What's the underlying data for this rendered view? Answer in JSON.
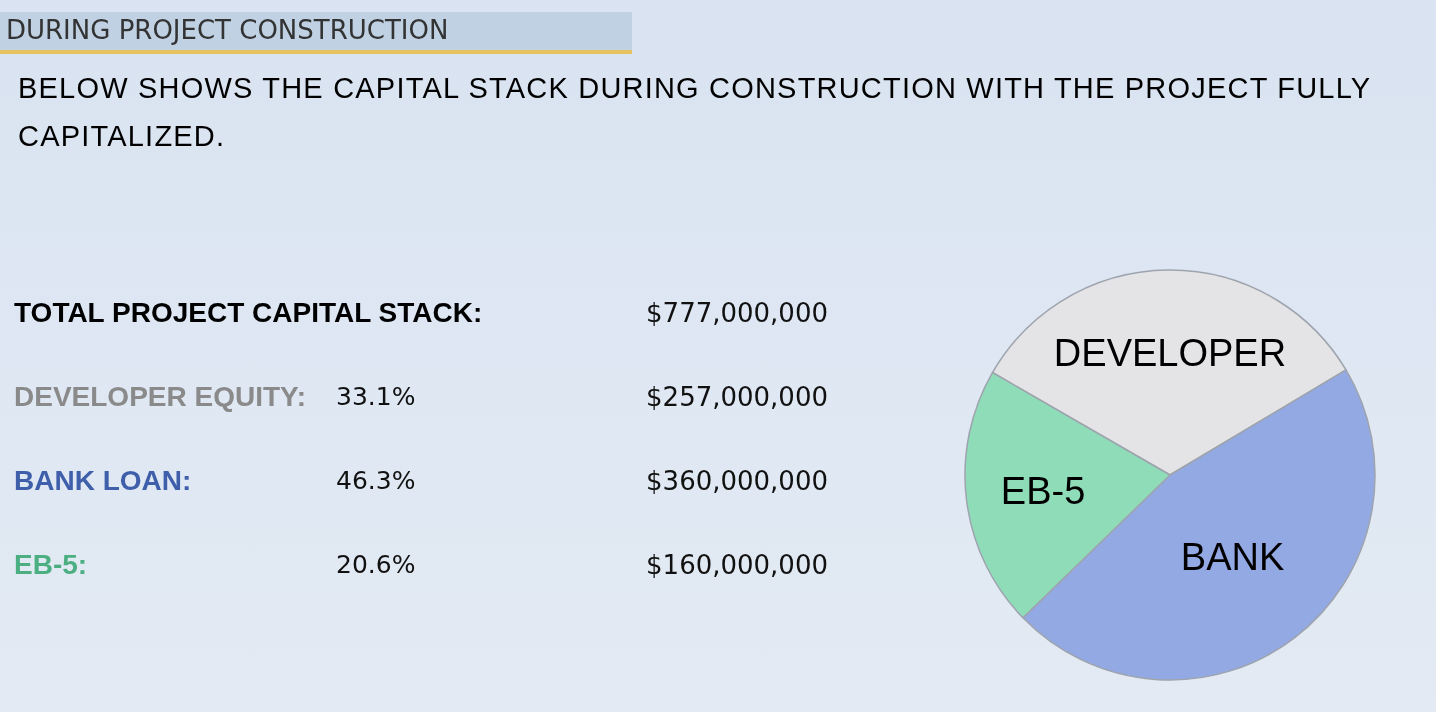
{
  "chart_data": [
    {
      "type": "other",
      "title": "DURING PROJECT CONSTRUCTION",
      "subtitle": "BELOW SHOWS THE CAPITAL STACK DURING CONSTRUCTION WITH THE PROJECT FULLY CAPITALIZED.",
      "annotations": [
        "TOTAL PROJECT CAPITAL STACK:",
        "$777,000,000",
        "DEVELOPER EQUITY:",
        "33.1%",
        "$257,000,000",
        "BANK LOAN:",
        "46.3%",
        "$360,000,000",
        "EB-5:",
        "20.6%",
        "$160,000,000"
      ]
    },
    {
      "type": "pie",
      "categories": [
        "DEVELOPER",
        "BANK",
        "EB-5"
      ],
      "values": [
        33.1,
        46.3,
        20.6
      ],
      "colors": [
        "#e4e4e6",
        "#93a9e3",
        "#8fdcb9"
      ]
    }
  ]
}
